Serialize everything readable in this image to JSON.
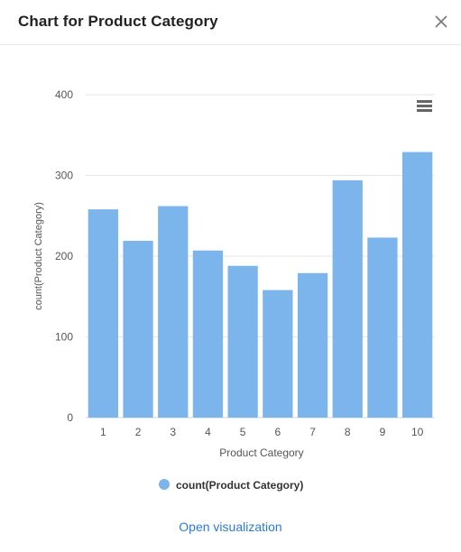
{
  "dialog": {
    "title": "Chart for Product Category",
    "open_link": "Open visualization"
  },
  "icons": {
    "close": "close-icon",
    "menu": "hamburger-menu-icon",
    "legend_marker": "circle-marker-icon"
  },
  "colors": {
    "bar": "#7cb5ec",
    "grid": "#e6e6e6",
    "axis_text": "#555555",
    "link": "#2a7bd3"
  },
  "chart_data": {
    "type": "bar",
    "categories": [
      "1",
      "2",
      "3",
      "4",
      "5",
      "6",
      "7",
      "8",
      "9",
      "10"
    ],
    "series": [
      {
        "name": "count(Product Category)",
        "values": [
          258,
          219,
          262,
          207,
          188,
          158,
          179,
          294,
          223,
          329
        ]
      }
    ],
    "xlabel": "Product Category",
    "ylabel": "count(Product Category)",
    "ylim": [
      0,
      400
    ],
    "yticks": [
      "0",
      "100",
      "200",
      "300",
      "400"
    ],
    "grid": true,
    "legend": "bottom-center"
  }
}
